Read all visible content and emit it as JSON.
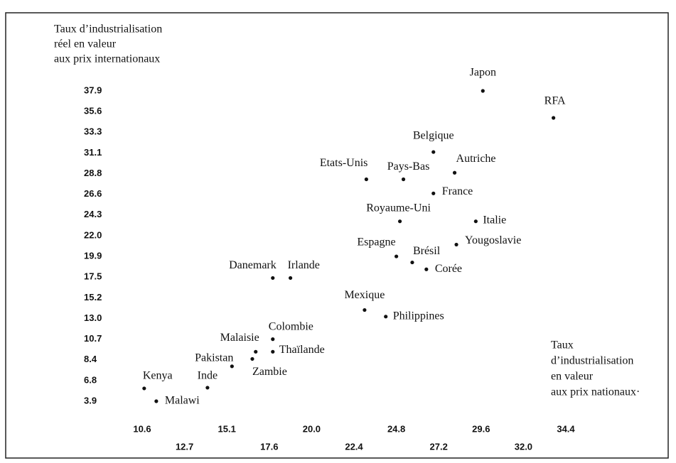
{
  "chart_data": {
    "type": "scatter",
    "y_label": [
      "Taux d’industrialisation",
      "réel en valeur",
      "aux prix internationaux"
    ],
    "x_label": [
      "Taux",
      "d’industrialisation",
      "en valeur",
      "aux prix nationaux·"
    ],
    "labels": [
      "Kenya",
      "Malawi",
      "Inde",
      "Pakistan",
      "Zambie",
      "Malaisie",
      "Thaïlande",
      "Colombie",
      "Danemark",
      "Irlande",
      "Mexique",
      "Philippines",
      "Espagne",
      "Brésil",
      "Corée",
      "Royaume-Uni",
      "Yougoslavie",
      "Italie",
      "France",
      "Etats-Unis",
      "Pays-Bas",
      "Autriche",
      "Belgique",
      "Japon",
      "RFA"
    ],
    "x": [
      10.7,
      11.3,
      14.0,
      15.4,
      16.6,
      16.8,
      17.8,
      17.8,
      17.8,
      18.8,
      23.0,
      24.2,
      24.8,
      25.7,
      26.5,
      25.0,
      28.2,
      29.3,
      26.9,
      23.1,
      25.2,
      28.1,
      26.9,
      29.7,
      33.7
    ],
    "y": [
      5.7,
      3.9,
      5.8,
      7.9,
      8.5,
      9.3,
      9.3,
      10.7,
      17.4,
      17.4,
      13.9,
      13.2,
      19.9,
      19.2,
      18.4,
      23.6,
      21.1,
      23.6,
      26.7,
      28.2,
      28.2,
      28.9,
      31.2,
      37.9,
      34.9
    ],
    "color": "#111111",
    "xlim": [
      10.6,
      34.4
    ],
    "xticks": [
      10.6,
      12.7,
      15.1,
      17.6,
      {
        "value": 20.0,
        "label": "20.0"
      },
      22.4,
      24.8,
      27.2,
      29.6,
      {
        "value": 32.0,
        "label": "32.0"
      },
      34.4
    ],
    "ylim": [
      3.9,
      37.9
    ],
    "yticks": [
      3.9,
      6.8,
      8.4,
      10.7,
      {
        "value": 13.0,
        "label": "13.0"
      },
      15.2,
      17.5,
      19.9,
      {
        "value": 22.0,
        "label": "22.0"
      },
      24.3,
      26.6,
      28.8,
      31.1,
      33.3,
      35.6,
      37.9
    ],
    "grid": false
  }
}
